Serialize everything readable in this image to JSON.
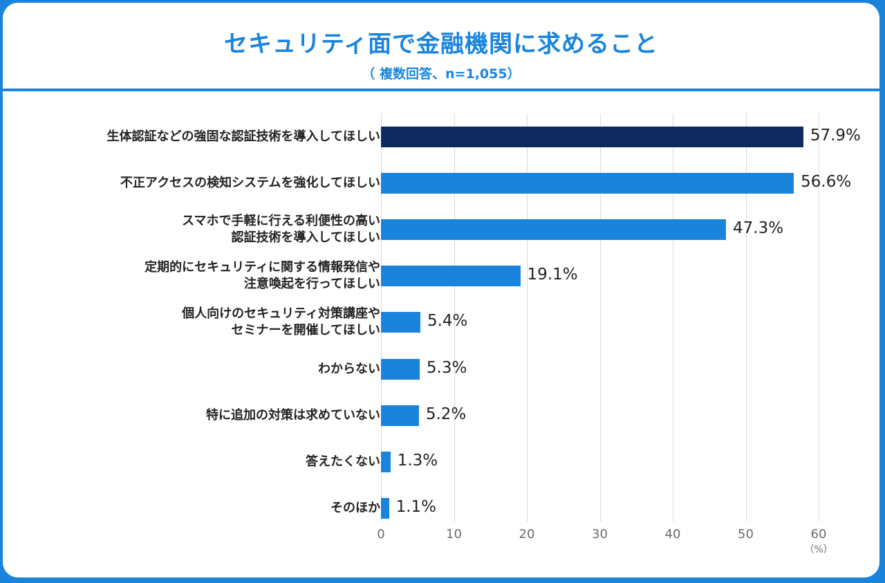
{
  "chart_data": {
    "type": "bar",
    "orientation": "horizontal",
    "title": "セキュリティ面で金融機関に求めること",
    "subtitle": "（ 複数回答、n=1,055）",
    "categories": [
      "生体認証などの強固な認証技術を導入してほしい",
      "不正アクセスの検知システムを強化してほしい",
      "スマホで手軽に行える利便性の高い\n認証技術を導入してほしい",
      "定期的にセキュリティに関する情報発信や\n注意喚起を行ってほしい",
      "個人向けのセキュリティ対策講座や\nセミナーを開催してほしい",
      "わからない",
      "特に追加の対策は求めていない",
      "答えたくない",
      "そのほか"
    ],
    "values": [
      57.9,
      56.6,
      47.3,
      19.1,
      5.4,
      5.3,
      5.2,
      1.3,
      1.1
    ],
    "value_labels": [
      "57.9%",
      "56.6%",
      "47.3%",
      "19.1%",
      "5.4%",
      "5.3%",
      "5.2%",
      "1.3%",
      "1.1%"
    ],
    "xlim": [
      0,
      60
    ],
    "xticks": [
      "0",
      "10",
      "20",
      "30",
      "40",
      "50",
      "60"
    ],
    "xunit": "（%）",
    "grid": true,
    "colors": {
      "highlight": "#0e2a5e",
      "bar": "#1a84dd",
      "accent": "#1a84dd"
    }
  }
}
